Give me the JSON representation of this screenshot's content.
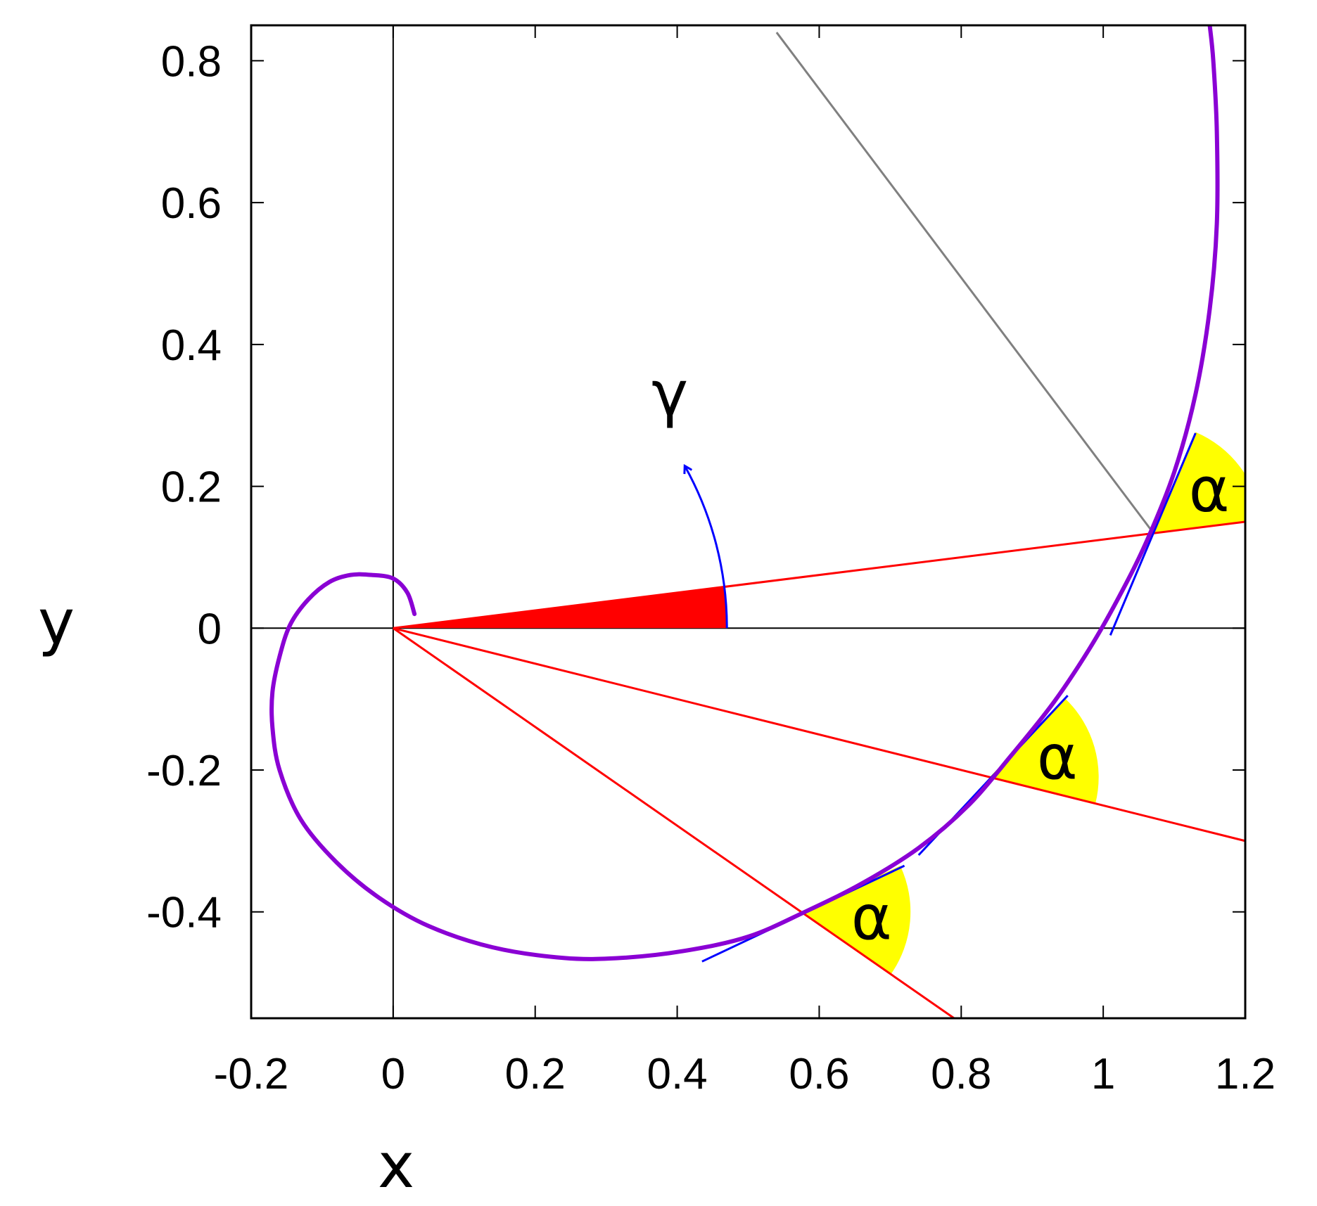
{
  "figure": {
    "xlabel": "x",
    "ylabel": "y",
    "xlim": [
      -0.2,
      1.2
    ],
    "ylim": [
      -0.55,
      0.85
    ],
    "xticks": [
      {
        "value": -0.2,
        "label": "-0.2"
      },
      {
        "value": 0,
        "label": "0"
      },
      {
        "value": 0.2,
        "label": "0.2"
      },
      {
        "value": 0.4,
        "label": "0.4"
      },
      {
        "value": 0.6,
        "label": "0.6"
      },
      {
        "value": 0.8,
        "label": "0.8"
      },
      {
        "value": 1,
        "label": "1"
      },
      {
        "value": 1.2,
        "label": "1.2"
      }
    ],
    "yticks": [
      {
        "value": 0.8,
        "label": "0.8"
      },
      {
        "value": 0.6,
        "label": "0.6"
      },
      {
        "value": 0.4,
        "label": "0.4"
      },
      {
        "value": 0.2,
        "label": "0.2"
      },
      {
        "value": 0,
        "label": "0"
      },
      {
        "value": -0.2,
        "label": "-0.2"
      },
      {
        "value": -0.4,
        "label": "-0.4"
      }
    ],
    "gamma_label": "γ",
    "alpha_label": "α",
    "colors": {
      "spiral": "#8a00d4",
      "rays": "#ff0000",
      "tangents": "#0000ff",
      "angle_fill": "#ffff00",
      "normal": "#808080",
      "axes": "#000000"
    },
    "spiral_points": [
      [
        0.03,
        0.02
      ],
      [
        0.02,
        0.05
      ],
      [
        0.0,
        0.07
      ],
      [
        -0.03,
        0.075
      ],
      [
        -0.06,
        0.075
      ],
      [
        -0.09,
        0.065
      ],
      [
        -0.12,
        0.04
      ],
      [
        -0.145,
        0.005
      ],
      [
        -0.16,
        -0.04
      ],
      [
        -0.17,
        -0.09
      ],
      [
        -0.17,
        -0.14
      ],
      [
        -0.16,
        -0.2
      ],
      [
        -0.13,
        -0.27
      ],
      [
        -0.08,
        -0.33
      ],
      [
        -0.02,
        -0.38
      ],
      [
        0.05,
        -0.42
      ],
      [
        0.14,
        -0.45
      ],
      [
        0.24,
        -0.465
      ],
      [
        0.32,
        -0.465
      ],
      [
        0.41,
        -0.455
      ],
      [
        0.5,
        -0.435
      ],
      [
        0.58,
        -0.4
      ],
      [
        0.66,
        -0.36
      ],
      [
        0.74,
        -0.31
      ],
      [
        0.81,
        -0.25
      ],
      [
        0.87,
        -0.18
      ],
      [
        0.93,
        -0.105
      ],
      [
        0.98,
        -0.03
      ],
      [
        1.02,
        0.04
      ],
      [
        1.06,
        0.12
      ],
      [
        1.1,
        0.22
      ],
      [
        1.13,
        0.33
      ],
      [
        1.15,
        0.45
      ],
      [
        1.16,
        0.57
      ],
      [
        1.16,
        0.7
      ],
      [
        1.155,
        0.8
      ],
      [
        1.15,
        0.85
      ]
    ],
    "rays": [
      {
        "start": [
          0,
          0
        ],
        "end": [
          1.2,
          0.15
        ],
        "point": [
          1.07,
          0.135
        ],
        "tangent": [
          [
            1.01,
            -0.01
          ],
          [
            1.13,
            0.275
          ]
        ],
        "alpha_from_deg": 7,
        "alpha_to_deg": 67
      },
      {
        "start": [
          0,
          0
        ],
        "end": [
          1.2,
          -0.3
        ],
        "point": [
          0.84,
          -0.21
        ],
        "tangent": [
          [
            0.74,
            -0.32
          ],
          [
            0.95,
            -0.095
          ]
        ],
        "alpha_from_deg": -14,
        "alpha_to_deg": 46
      },
      {
        "start": [
          0,
          0
        ],
        "end": [
          0.79,
          -0.55
        ],
        "point": [
          0.575,
          -0.4
        ],
        "tangent": [
          [
            0.435,
            -0.47
          ],
          [
            0.72,
            -0.335
          ]
        ],
        "alpha_from_deg": -35,
        "alpha_to_deg": 25
      }
    ],
    "wedge_angle_deg": 7,
    "normal_line": [
      [
        0.54,
        0.84
      ],
      [
        1.07,
        0.135
      ]
    ]
  }
}
